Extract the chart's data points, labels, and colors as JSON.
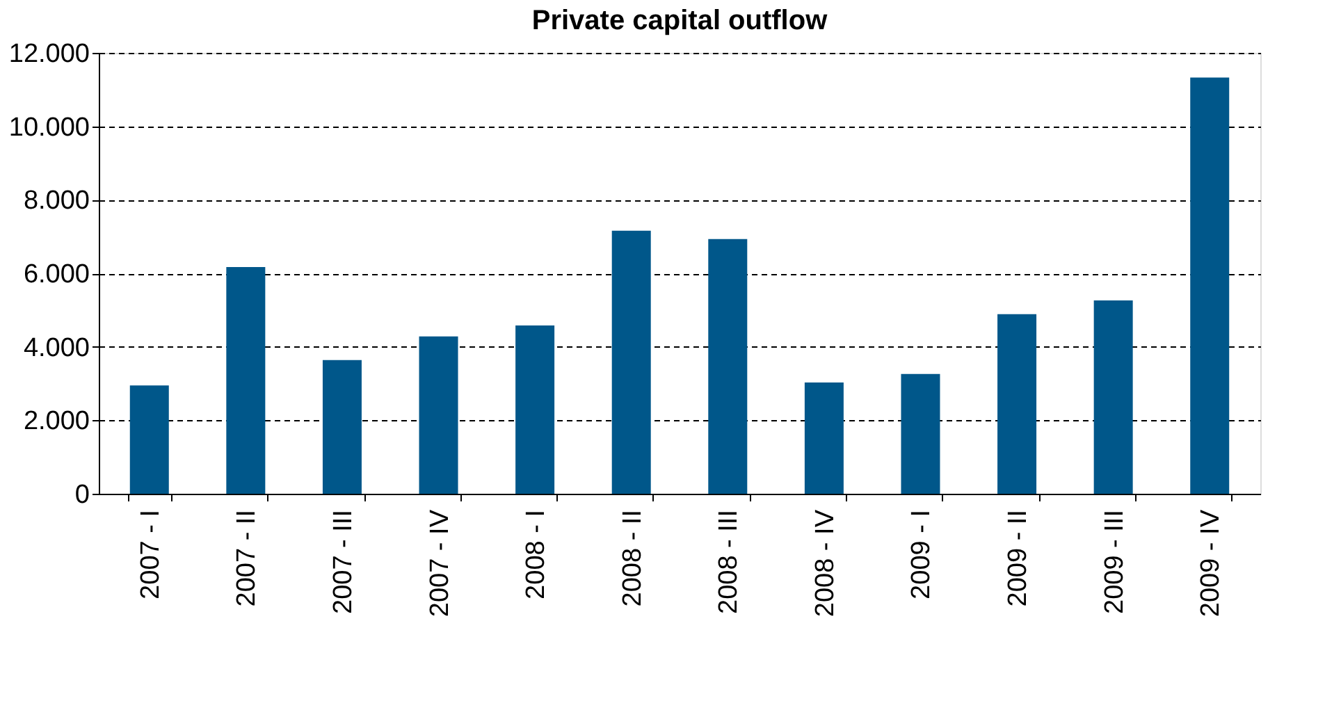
{
  "chart_data": {
    "type": "bar",
    "title": "Private capital outflow",
    "categories": [
      "2007 - I",
      "2007 - II",
      "2007 - III",
      "2007 - IV",
      "2008 - I",
      "2008 - II",
      "2008 - III",
      "2008 - IV",
      "2009 - I",
      "2009 - II",
      "2009 - III",
      "2009 - IV"
    ],
    "values": [
      2950,
      6170,
      3640,
      4280,
      4580,
      7160,
      6930,
      3030,
      3260,
      4890,
      5260,
      11330
    ],
    "color": "#00578a",
    "ylim": [
      0,
      12000
    ],
    "yticks": [
      {
        "value": 0,
        "label": "0"
      },
      {
        "value": 2000,
        "label": "2.000"
      },
      {
        "value": 4000,
        "label": "4.000"
      },
      {
        "value": 6000,
        "label": "6.000"
      },
      {
        "value": 8000,
        "label": "8.000"
      },
      {
        "value": 10000,
        "label": "10.000"
      },
      {
        "value": 12000,
        "label": "12.000"
      }
    ],
    "grid": "y"
  }
}
